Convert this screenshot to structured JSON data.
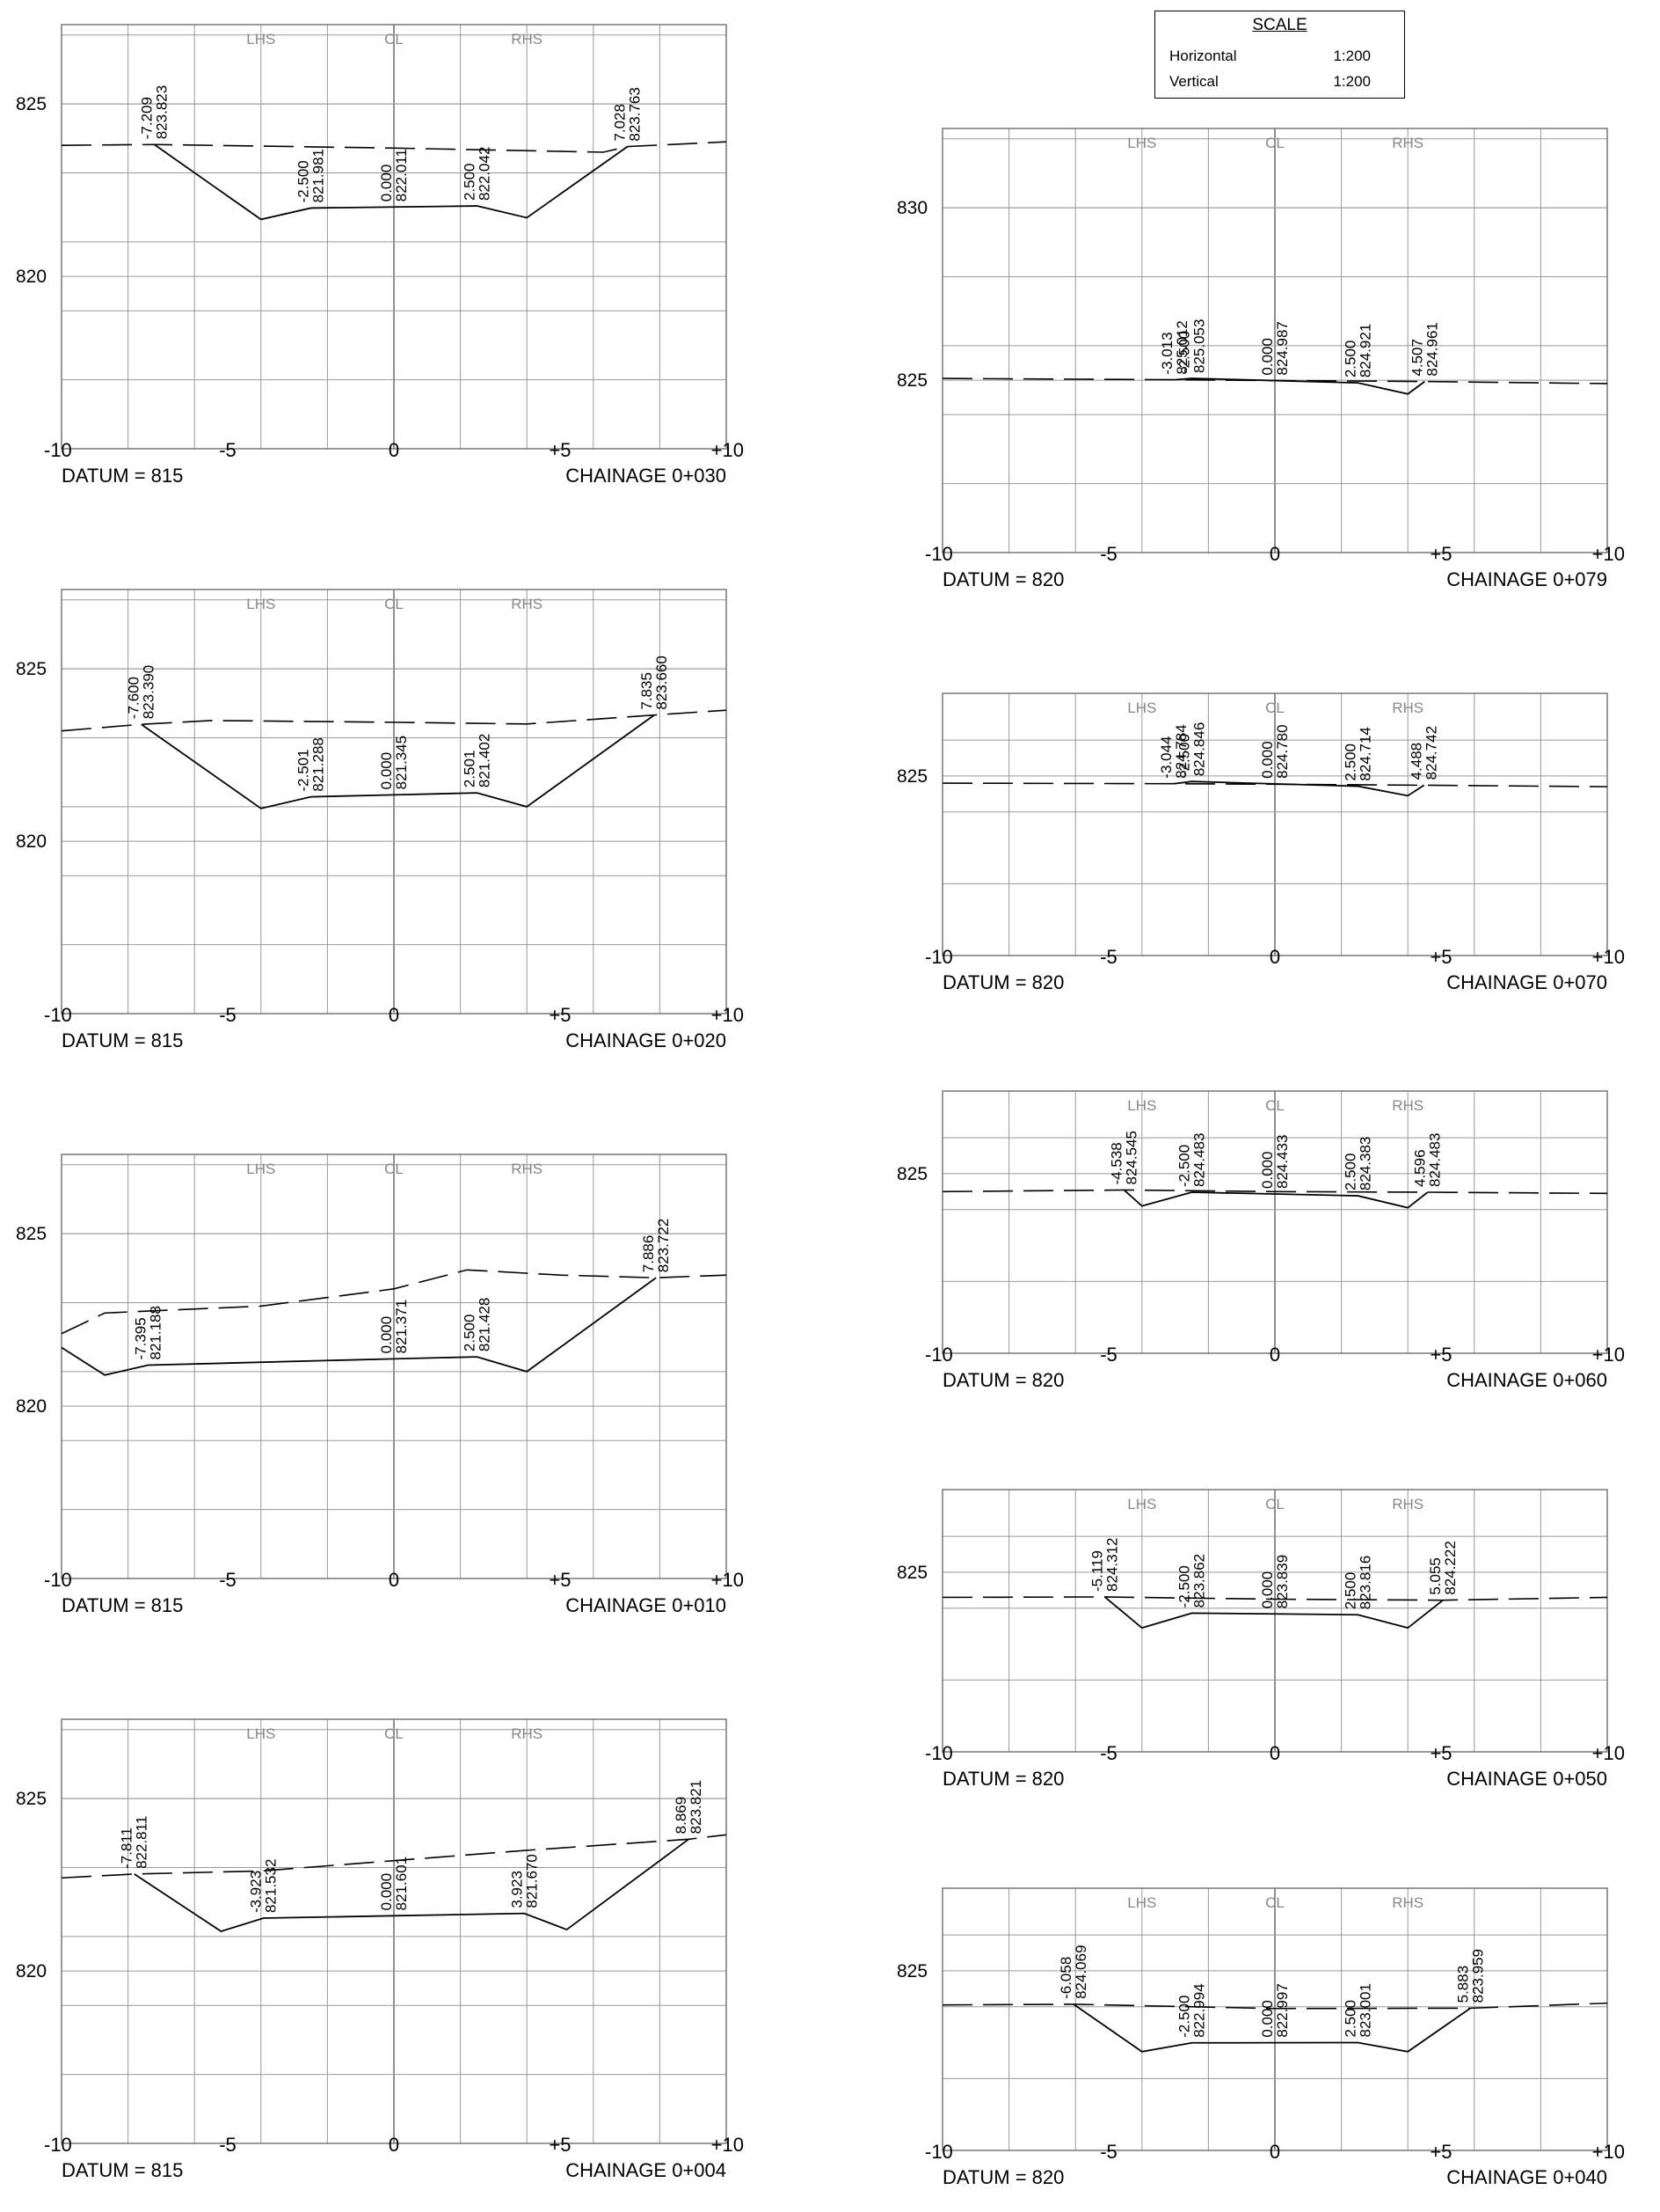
{
  "scale": {
    "title": "SCALE",
    "rows": [
      {
        "label": "Horizontal",
        "value": "1:200"
      },
      {
        "label": "Vertical",
        "value": "1:200"
      }
    ]
  },
  "chart_data": [
    {
      "type": "cross-section",
      "chainage": "CHAINAGE 0+030",
      "datum": "DATUM = 815",
      "xlim": [
        -10,
        10
      ],
      "ylim": [
        815,
        827.3
      ],
      "yticks": [
        820,
        825
      ],
      "xtick_labels": [
        "-10",
        "-5",
        "0",
        "+5",
        "+10"
      ],
      "column_labels": [
        {
          "x": -4,
          "text": "LHS"
        },
        {
          "x": 0,
          "text": "CL"
        },
        {
          "x": 4,
          "text": "RHS"
        }
      ],
      "existing_ground": [
        [
          -10,
          823.8
        ],
        [
          -7.209,
          823.823
        ],
        [
          0,
          823.72
        ],
        [
          6.3,
          823.6
        ],
        [
          7.028,
          823.763
        ],
        [
          10,
          823.9
        ]
      ],
      "design": [
        [
          -7.209,
          823.823
        ],
        [
          -4,
          821.65
        ],
        [
          -2.5,
          821.981
        ],
        [
          0,
          822.011
        ],
        [
          2.5,
          822.042
        ],
        [
          4,
          821.7
        ],
        [
          7.028,
          823.763
        ]
      ],
      "annotations": [
        {
          "x": -7.209,
          "offset": "-7.209",
          "level": "823.823"
        },
        {
          "x": -2.5,
          "offset": "-2.500",
          "level": "821.981"
        },
        {
          "x": 0,
          "offset": "0.000",
          "level": "822.011"
        },
        {
          "x": 2.5,
          "offset": "2.500",
          "level": "822.042"
        },
        {
          "x": 7.028,
          "offset": "7.028",
          "level": "823.763"
        }
      ]
    },
    {
      "type": "cross-section",
      "chainage": "CHAINAGE 0+020",
      "datum": "DATUM = 815",
      "xlim": [
        -10,
        10
      ],
      "ylim": [
        815,
        827.3
      ],
      "yticks": [
        820,
        825
      ],
      "xtick_labels": [
        "-10",
        "-5",
        "0",
        "+5",
        "+10"
      ],
      "column_labels": [
        {
          "x": -4,
          "text": "LHS"
        },
        {
          "x": 0,
          "text": "CL"
        },
        {
          "x": 4,
          "text": "RHS"
        }
      ],
      "existing_ground": [
        [
          -10,
          823.2
        ],
        [
          -7.6,
          823.39
        ],
        [
          -5.5,
          823.5
        ],
        [
          0,
          823.45
        ],
        [
          4,
          823.4
        ],
        [
          7.835,
          823.66
        ],
        [
          10,
          823.8
        ]
      ],
      "design": [
        [
          -7.6,
          823.39
        ],
        [
          -4,
          820.95
        ],
        [
          -2.501,
          821.288
        ],
        [
          0,
          821.345
        ],
        [
          2.501,
          821.402
        ],
        [
          4,
          821.0
        ],
        [
          7.835,
          823.66
        ]
      ],
      "annotations": [
        {
          "x": -7.6,
          "offset": "-7.600",
          "level": "823.390"
        },
        {
          "x": -2.501,
          "offset": "-2.501",
          "level": "821.288"
        },
        {
          "x": 0,
          "offset": "0.000",
          "level": "821.345"
        },
        {
          "x": 2.501,
          "offset": "2.501",
          "level": "821.402"
        },
        {
          "x": 7.835,
          "offset": "7.835",
          "level": "823.660"
        }
      ]
    },
    {
      "type": "cross-section",
      "chainage": "CHAINAGE 0+010",
      "datum": "DATUM = 815",
      "xlim": [
        -10,
        10
      ],
      "ylim": [
        815,
        827.3
      ],
      "yticks": [
        820,
        825
      ],
      "xtick_labels": [
        "-10",
        "-5",
        "0",
        "+5",
        "+10"
      ],
      "column_labels": [
        {
          "x": -4,
          "text": "LHS"
        },
        {
          "x": 0,
          "text": "CL"
        },
        {
          "x": 4,
          "text": "RHS"
        }
      ],
      "existing_ground": [
        [
          -10,
          822.1
        ],
        [
          -8.7,
          822.7
        ],
        [
          -4,
          822.9
        ],
        [
          0,
          823.4
        ],
        [
          2.2,
          823.95
        ],
        [
          5,
          823.8
        ],
        [
          7.886,
          823.722
        ],
        [
          10,
          823.8
        ]
      ],
      "design": [
        [
          -10,
          821.7
        ],
        [
          -8.7,
          820.9
        ],
        [
          -7.395,
          821.188
        ],
        [
          0,
          821.371
        ],
        [
          2.5,
          821.428
        ],
        [
          4,
          821.0
        ],
        [
          7.886,
          823.722
        ]
      ],
      "annotations": [
        {
          "x": -7.395,
          "offset": "-7.395",
          "level": "821.188"
        },
        {
          "x": 0,
          "offset": "0.000",
          "level": "821.371"
        },
        {
          "x": 2.5,
          "offset": "2.500",
          "level": "821.428"
        },
        {
          "x": 7.886,
          "offset": "7.886",
          "level": "823.722"
        }
      ]
    },
    {
      "type": "cross-section",
      "chainage": "CHAINAGE 0+004",
      "datum": "DATUM = 815",
      "xlim": [
        -10,
        10
      ],
      "ylim": [
        815,
        827.3
      ],
      "yticks": [
        820,
        825
      ],
      "xtick_labels": [
        "-10",
        "-5",
        "0",
        "+5",
        "+10"
      ],
      "column_labels": [
        {
          "x": -4,
          "text": "LHS"
        },
        {
          "x": 0,
          "text": "CL"
        },
        {
          "x": 4,
          "text": "RHS"
        }
      ],
      "existing_ground": [
        [
          -10,
          822.7
        ],
        [
          -7.811,
          822.811
        ],
        [
          -4,
          822.9
        ],
        [
          0,
          823.2
        ],
        [
          4,
          823.5
        ],
        [
          8.869,
          823.821
        ],
        [
          10,
          823.95
        ]
      ],
      "design": [
        [
          -7.811,
          822.811
        ],
        [
          -5.2,
          821.15
        ],
        [
          -3.923,
          821.532
        ],
        [
          0,
          821.601
        ],
        [
          3.923,
          821.67
        ],
        [
          5.2,
          821.2
        ],
        [
          8.869,
          823.821
        ]
      ],
      "annotations": [
        {
          "x": -7.811,
          "offset": "-7.811",
          "level": "822.811"
        },
        {
          "x": -3.923,
          "offset": "-3.923",
          "level": "821.532"
        },
        {
          "x": 0,
          "offset": "0.000",
          "level": "821.601"
        },
        {
          "x": 3.923,
          "offset": "3.923",
          "level": "821.670"
        },
        {
          "x": 8.869,
          "offset": "8.869",
          "level": "823.821"
        }
      ]
    },
    {
      "type": "cross-section",
      "chainage": "CHAINAGE 0+079",
      "datum": "DATUM = 820",
      "xlim": [
        -10,
        10
      ],
      "ylim": [
        820,
        832.3
      ],
      "yticks": [
        825,
        830
      ],
      "xtick_labels": [
        "-10",
        "-5",
        "0",
        "+5",
        "+10"
      ],
      "column_labels": [
        {
          "x": -4,
          "text": "LHS"
        },
        {
          "x": 0,
          "text": "CL"
        },
        {
          "x": 4,
          "text": "RHS"
        }
      ],
      "existing_ground": [
        [
          -10,
          825.05
        ],
        [
          -3.013,
          825.012
        ],
        [
          0,
          824.99
        ],
        [
          4.507,
          824.961
        ],
        [
          10,
          824.9
        ]
      ],
      "design": [
        [
          -3.013,
          825.012
        ],
        [
          -2.5,
          825.053
        ],
        [
          0,
          824.987
        ],
        [
          2.5,
          824.921
        ],
        [
          4,
          824.6
        ],
        [
          4.507,
          824.961
        ]
      ],
      "annotations": [
        {
          "x": -3.013,
          "offset": "-3.013",
          "level": "825.012"
        },
        {
          "x": -2.5,
          "offset": "-2.500",
          "level": "825.053"
        },
        {
          "x": 0,
          "offset": "0.000",
          "level": "824.987"
        },
        {
          "x": 2.5,
          "offset": "2.500",
          "level": "824.921"
        },
        {
          "x": 4.507,
          "offset": "4.507",
          "level": "824.961"
        }
      ]
    },
    {
      "type": "cross-section",
      "chainage": "CHAINAGE 0+070",
      "datum": "DATUM = 820",
      "xlim": [
        -10,
        10
      ],
      "ylim": [
        820,
        827.3
      ],
      "yticks": [
        825
      ],
      "xtick_labels": [
        "-10",
        "-5",
        "0",
        "+5",
        "+10"
      ],
      "column_labels": [
        {
          "x": -4,
          "text": "LHS"
        },
        {
          "x": 0,
          "text": "CL"
        },
        {
          "x": 4,
          "text": "RHS"
        }
      ],
      "existing_ground": [
        [
          -10,
          824.8
        ],
        [
          -3.044,
          824.784
        ],
        [
          0,
          824.77
        ],
        [
          4.488,
          824.742
        ],
        [
          10,
          824.7
        ]
      ],
      "design": [
        [
          -3.044,
          824.784
        ],
        [
          -2.5,
          824.846
        ],
        [
          0,
          824.78
        ],
        [
          2.5,
          824.714
        ],
        [
          4,
          824.45
        ],
        [
          4.488,
          824.742
        ]
      ],
      "annotations": [
        {
          "x": -3.044,
          "offset": "-3.044",
          "level": "824.784"
        },
        {
          "x": -2.5,
          "offset": "-2.500",
          "level": "824.846"
        },
        {
          "x": 0,
          "offset": "0.000",
          "level": "824.780"
        },
        {
          "x": 2.5,
          "offset": "2.500",
          "level": "824.714"
        },
        {
          "x": 4.488,
          "offset": "4.488",
          "level": "824.742"
        }
      ]
    },
    {
      "type": "cross-section",
      "chainage": "CHAINAGE 0+060",
      "datum": "DATUM = 820",
      "xlim": [
        -10,
        10
      ],
      "ylim": [
        820,
        827.3
      ],
      "yticks": [
        825
      ],
      "xtick_labels": [
        "-10",
        "-5",
        "0",
        "+5",
        "+10"
      ],
      "column_labels": [
        {
          "x": -4,
          "text": "LHS"
        },
        {
          "x": 0,
          "text": "CL"
        },
        {
          "x": 4,
          "text": "RHS"
        }
      ],
      "existing_ground": [
        [
          -10,
          824.5
        ],
        [
          -4.538,
          824.545
        ],
        [
          0,
          824.5
        ],
        [
          4.596,
          824.483
        ],
        [
          10,
          824.45
        ]
      ],
      "design": [
        [
          -4.538,
          824.545
        ],
        [
          -4,
          824.1
        ],
        [
          -2.5,
          824.483
        ],
        [
          0,
          824.433
        ],
        [
          2.5,
          824.383
        ],
        [
          4,
          824.05
        ],
        [
          4.596,
          824.483
        ]
      ],
      "annotations": [
        {
          "x": -4.538,
          "offset": "-4.538",
          "level": "824.545"
        },
        {
          "x": -2.5,
          "offset": "-2.500",
          "level": "824.483"
        },
        {
          "x": 0,
          "offset": "0.000",
          "level": "824.433"
        },
        {
          "x": 2.5,
          "offset": "2.500",
          "level": "824.383"
        },
        {
          "x": 4.596,
          "offset": "4.596",
          "level": "824.483"
        }
      ]
    },
    {
      "type": "cross-section",
      "chainage": "CHAINAGE 0+050",
      "datum": "DATUM = 820",
      "xlim": [
        -10,
        10
      ],
      "ylim": [
        820,
        827.3
      ],
      "yticks": [
        825
      ],
      "xtick_labels": [
        "-10",
        "-5",
        "0",
        "+5",
        "+10"
      ],
      "column_labels": [
        {
          "x": -4,
          "text": "LHS"
        },
        {
          "x": 0,
          "text": "CL"
        },
        {
          "x": 4,
          "text": "RHS"
        }
      ],
      "existing_ground": [
        [
          -10,
          824.3
        ],
        [
          -5.119,
          824.312
        ],
        [
          0,
          824.25
        ],
        [
          5.055,
          824.222
        ],
        [
          10,
          824.3
        ]
      ],
      "design": [
        [
          -5.119,
          824.312
        ],
        [
          -4,
          823.45
        ],
        [
          -2.5,
          823.862
        ],
        [
          0,
          823.839
        ],
        [
          2.5,
          823.816
        ],
        [
          4,
          823.45
        ],
        [
          5.055,
          824.222
        ]
      ],
      "annotations": [
        {
          "x": -5.119,
          "offset": "-5.119",
          "level": "824.312"
        },
        {
          "x": -2.5,
          "offset": "-2.500",
          "level": "823.862"
        },
        {
          "x": 0,
          "offset": "0.000",
          "level": "823.839"
        },
        {
          "x": 2.5,
          "offset": "2.500",
          "level": "823.816"
        },
        {
          "x": 5.055,
          "offset": "5.055",
          "level": "824.222"
        }
      ]
    },
    {
      "type": "cross-section",
      "chainage": "CHAINAGE 0+040",
      "datum": "DATUM = 820",
      "xlim": [
        -10,
        10
      ],
      "ylim": [
        820,
        827.3
      ],
      "yticks": [
        825
      ],
      "xtick_labels": [
        "-10",
        "-5",
        "0",
        "+5",
        "+10"
      ],
      "column_labels": [
        {
          "x": -4,
          "text": "LHS"
        },
        {
          "x": 0,
          "text": "CL"
        },
        {
          "x": 4,
          "text": "RHS"
        }
      ],
      "existing_ground": [
        [
          -10,
          824.05
        ],
        [
          -6.058,
          824.069
        ],
        [
          0,
          823.95
        ],
        [
          5.883,
          823.959
        ],
        [
          10,
          824.1
        ]
      ],
      "design": [
        [
          -6.058,
          824.069
        ],
        [
          -4,
          822.75
        ],
        [
          -2.5,
          822.994
        ],
        [
          0,
          822.997
        ],
        [
          2.5,
          823.001
        ],
        [
          4,
          822.75
        ],
        [
          5.883,
          823.959
        ]
      ],
      "annotations": [
        {
          "x": -6.058,
          "offset": "-6.058",
          "level": "824.069"
        },
        {
          "x": -2.5,
          "offset": "-2.500",
          "level": "822.994"
        },
        {
          "x": 0,
          "offset": "0.000",
          "level": "822.997"
        },
        {
          "x": 2.5,
          "offset": "2.500",
          "level": "823.001"
        },
        {
          "x": 5.883,
          "offset": "5.883",
          "level": "823.959"
        }
      ]
    }
  ]
}
